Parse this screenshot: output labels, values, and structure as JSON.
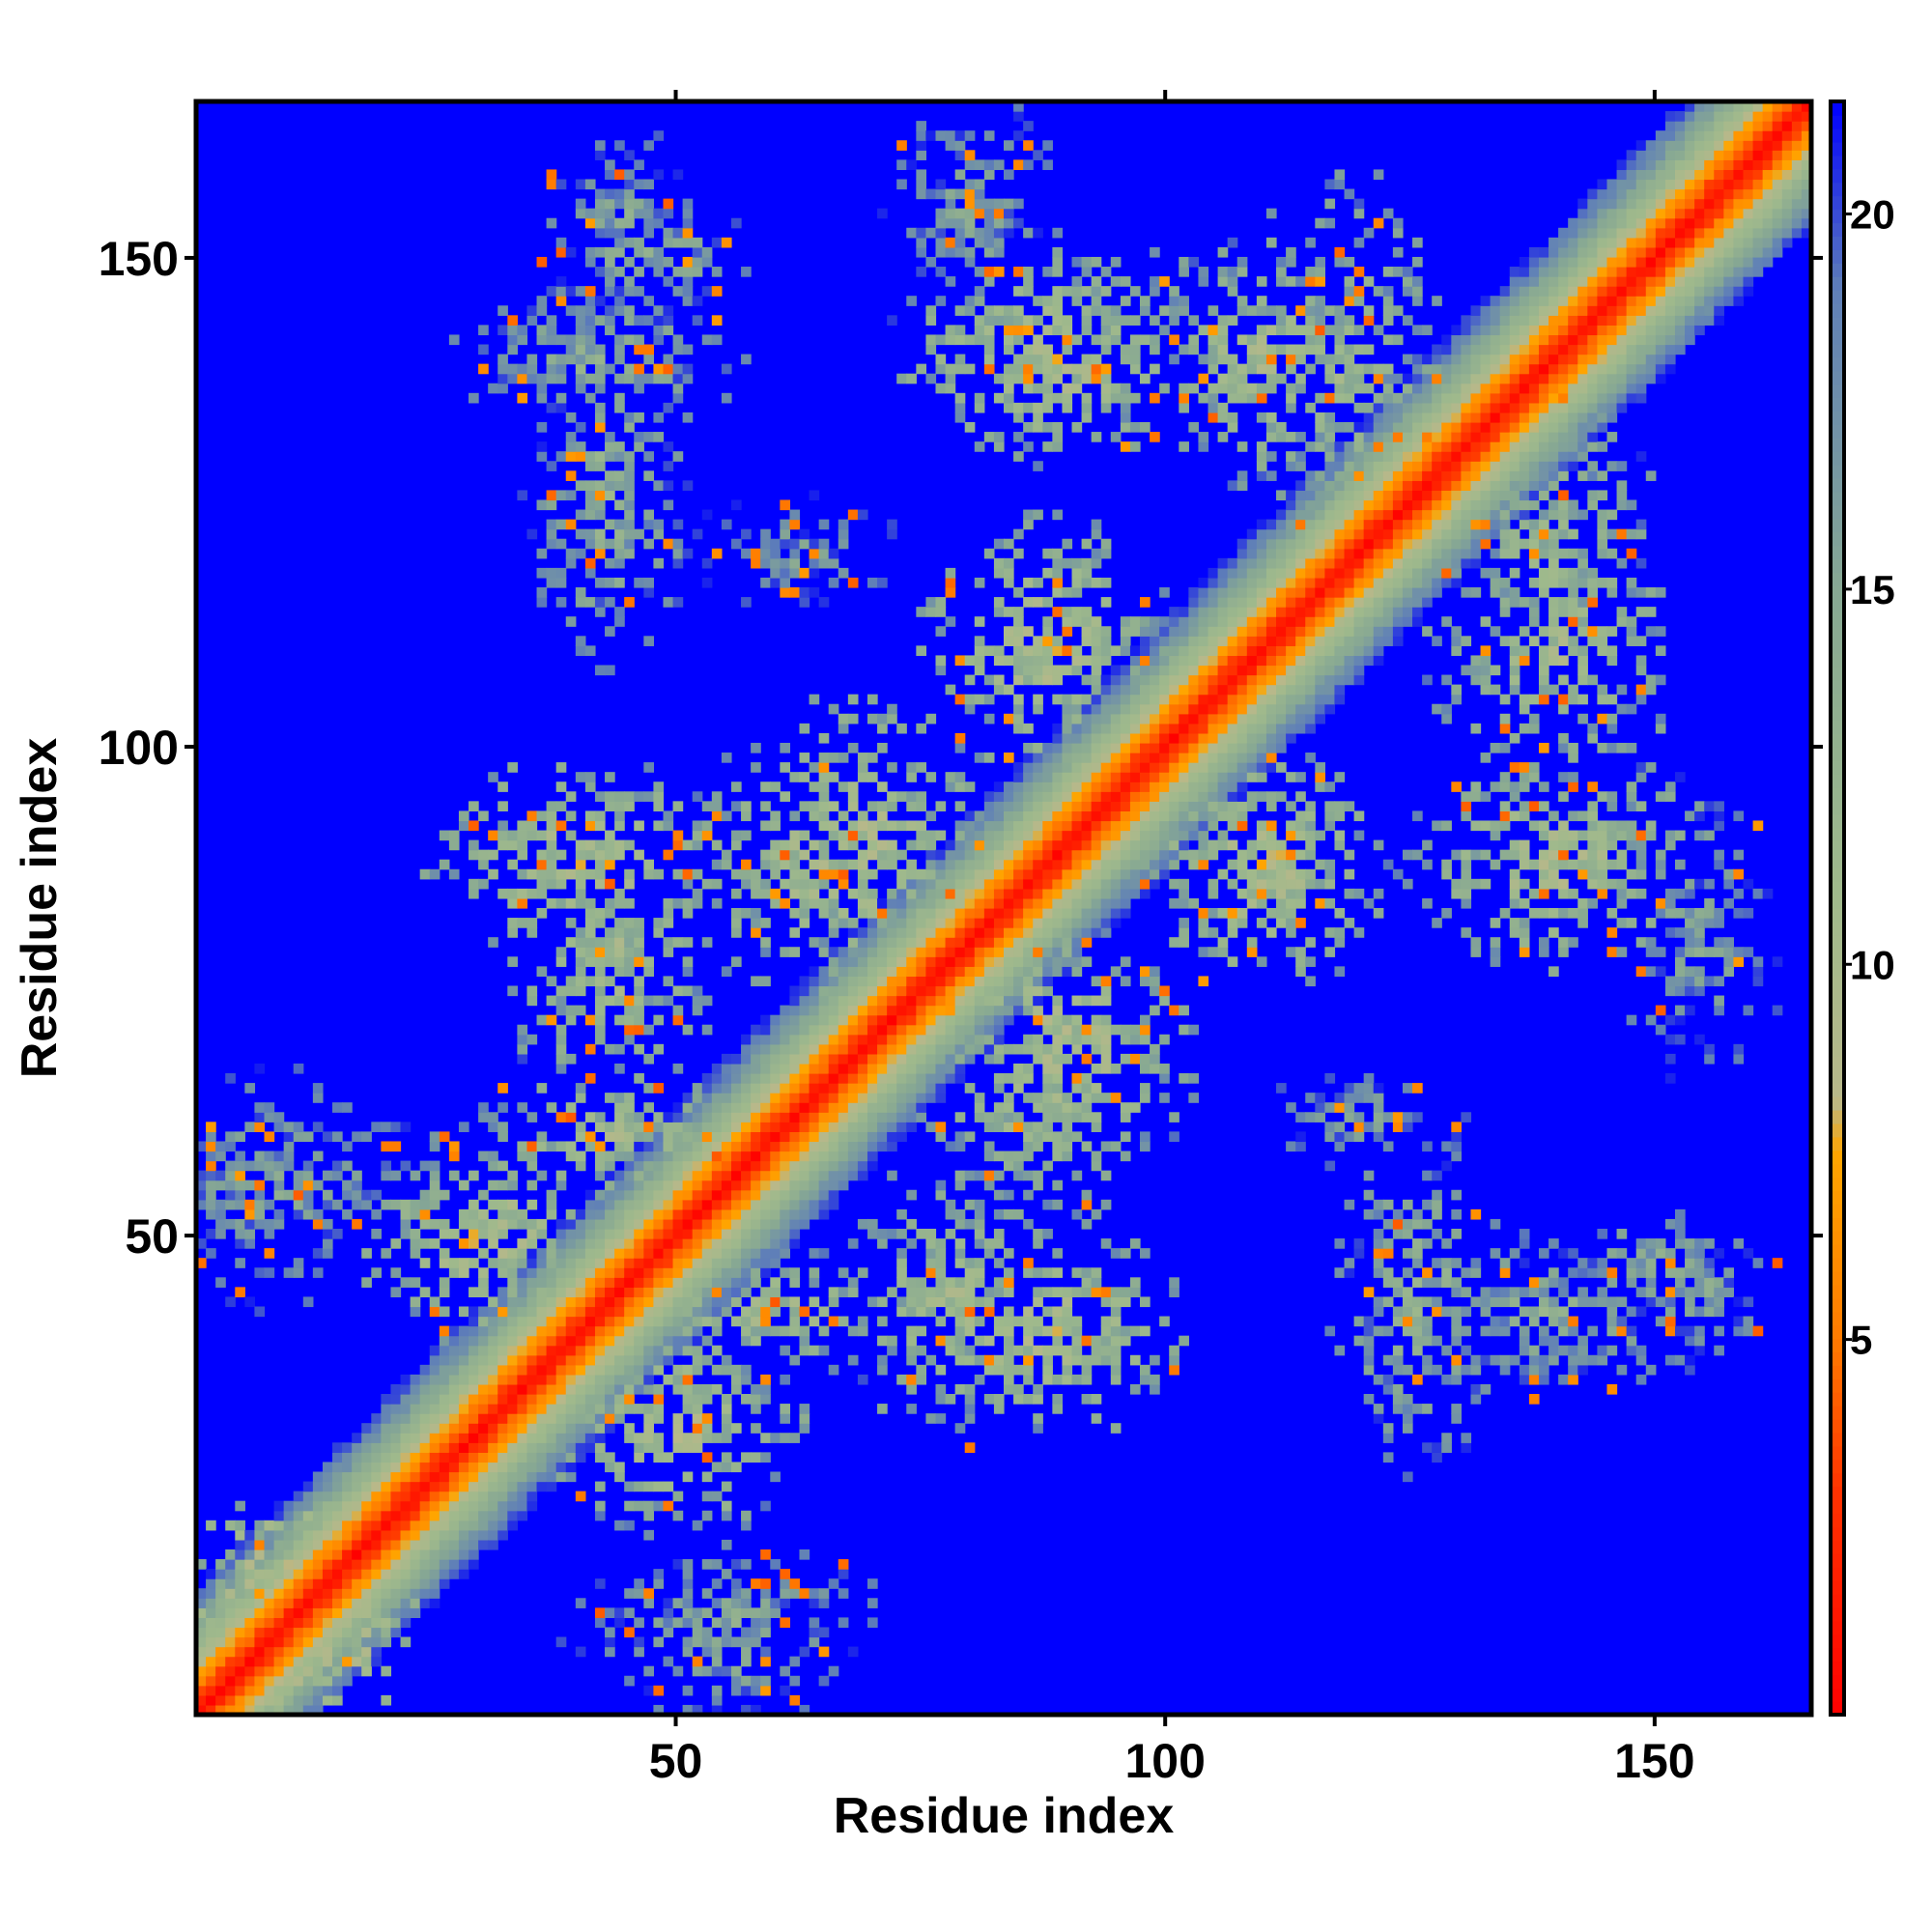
{
  "chart_data": {
    "type": "heatmap",
    "title": "",
    "xlabel": "Residue index",
    "ylabel": "Residue index",
    "xlim": [
      1,
      166
    ],
    "ylim": [
      1,
      166
    ],
    "n_residues": 166,
    "x_ticks": [
      50,
      100,
      150
    ],
    "y_ticks": [
      50,
      100,
      150
    ],
    "x_tick_labels": [
      "50",
      "100",
      "150"
    ],
    "y_tick_labels": [
      "50",
      "100",
      "150"
    ],
    "colorbar": {
      "ticks": [
        5,
        10,
        15,
        20
      ],
      "tick_labels": [
        "5",
        "10",
        "15",
        "20"
      ],
      "range": [
        0,
        21.5
      ],
      "stops": [
        {
          "value": 0,
          "color": "#ff0000"
        },
        {
          "value": 3,
          "color": "#ff3300"
        },
        {
          "value": 5,
          "color": "#ff7a00"
        },
        {
          "value": 7.5,
          "color": "#ffa500"
        },
        {
          "value": 8.2,
          "color": "#b8b88a"
        },
        {
          "value": 11,
          "color": "#9fb98c"
        },
        {
          "value": 15,
          "color": "#87a893"
        },
        {
          "value": 19,
          "color": "#5f7fb8"
        },
        {
          "value": 21.5,
          "color": "#0000ff"
        }
      ]
    },
    "background_color": "#0000ff",
    "diagonal_band": {
      "center_value": 0,
      "half_width_residues": 9
    },
    "contact_patches": [
      {
        "x": 30,
        "y": 50,
        "xr": 12,
        "yr": 10,
        "value": 10
      },
      {
        "x": 43,
        "y": 78,
        "xr": 10,
        "yr": 14,
        "value": 11
      },
      {
        "x": 43,
        "y": 126,
        "xr": 8,
        "yr": 16,
        "value": 13
      },
      {
        "x": 47,
        "y": 151,
        "xr": 10,
        "yr": 6,
        "value": 14
      },
      {
        "x": 60,
        "y": 42,
        "xr": 14,
        "yr": 6,
        "value": 11
      },
      {
        "x": 69,
        "y": 90,
        "xr": 12,
        "yr": 14,
        "value": 10
      },
      {
        "x": 55,
        "y": 10,
        "xr": 16,
        "yr": 8,
        "value": 15
      },
      {
        "x": 88,
        "y": 40,
        "xr": 14,
        "yr": 10,
        "value": 10
      },
      {
        "x": 88,
        "y": 63,
        "xr": 12,
        "yr": 12,
        "value": 11
      },
      {
        "x": 88,
        "y": 111,
        "xr": 10,
        "yr": 12,
        "value": 10
      },
      {
        "x": 88,
        "y": 143,
        "xr": 14,
        "yr": 10,
        "value": 12
      },
      {
        "x": 110,
        "y": 140,
        "xr": 12,
        "yr": 12,
        "value": 11
      },
      {
        "x": 110,
        "y": 88,
        "xr": 12,
        "yr": 12,
        "value": 10
      },
      {
        "x": 140,
        "y": 118,
        "xr": 10,
        "yr": 18,
        "value": 12
      },
      {
        "x": 140,
        "y": 88,
        "xr": 14,
        "yr": 10,
        "value": 10
      },
      {
        "x": 140,
        "y": 42,
        "xr": 14,
        "yr": 8,
        "value": 14
      },
      {
        "x": 155,
        "y": 80,
        "xr": 8,
        "yr": 14,
        "value": 15
      },
      {
        "x": 155,
        "y": 44,
        "xr": 8,
        "yr": 8,
        "value": 15
      },
      {
        "x": 8,
        "y": 55,
        "xr": 10,
        "yr": 12,
        "value": 15
      },
      {
        "x": 120,
        "y": 62,
        "xr": 10,
        "yr": 6,
        "value": 16
      },
      {
        "x": 10,
        "y": 12,
        "xr": 10,
        "yr": 10,
        "value": 8
      }
    ]
  }
}
